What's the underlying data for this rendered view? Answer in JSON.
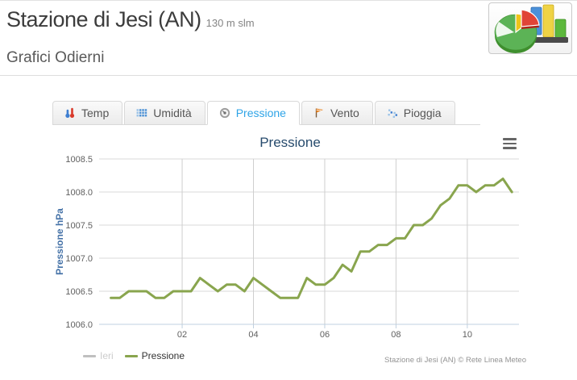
{
  "header": {
    "title": "Stazione di Jesi (AN)",
    "subtitle": "130 m slm",
    "section_title": "Grafici Odierni"
  },
  "logo": {
    "icon": "pie-and-bar-chart-logo"
  },
  "tabs": [
    {
      "id": "temp",
      "label": "Temp",
      "icon": "thermometer-icon",
      "active": false
    },
    {
      "id": "umidita",
      "label": "Umidità",
      "icon": "humidity-grid-icon",
      "active": false
    },
    {
      "id": "pressione",
      "label": "Pressione",
      "icon": "gauge-icon",
      "active": true
    },
    {
      "id": "vento",
      "label": "Vento",
      "icon": "wind-flag-icon",
      "active": false
    },
    {
      "id": "pioggia",
      "label": "Pioggia",
      "icon": "rain-drops-icon",
      "active": false
    }
  ],
  "colors": {
    "active_tab_text": "#2FA4E7",
    "series_green": "#89A54E",
    "legend_disabled_line": "#C0C0C0",
    "legend_disabled_text": "#CCCCCC",
    "legend_text": "#333333",
    "chart_title": "#274B6D",
    "y_axis_title": "#4572A7",
    "grid_line": "#D8D8D8",
    "x_grid_line": "#CFCFCF",
    "axis_line": "#C0D0E0",
    "tick_label": "#606060"
  },
  "chart": {
    "title": "Pressione",
    "menu_icon": "hamburger-menu-icon",
    "credits": "Stazione di Jesi (AN) © Rete Linea Meteo",
    "legend": [
      {
        "label": "Ieri",
        "line_color": "#C0C0C0",
        "text_color": "#CCCCCC",
        "disabled": true
      },
      {
        "label": "Pressione",
        "line_color": "#89A54E",
        "text_color": "#333333",
        "disabled": false
      }
    ]
  },
  "chart_data": {
    "type": "line",
    "title": "Pressione",
    "xlabel": "",
    "ylabel": "Pressione hPa",
    "x_unit": "hours of day",
    "xlim": [
      -0.33,
      11.45
    ],
    "ylim": [
      1006.0,
      1008.5
    ],
    "grid": true,
    "legend_position": "bottom-left",
    "yticks": [
      {
        "value": 1006.0,
        "label": "1006.0"
      },
      {
        "value": 1006.5,
        "label": "1006.5"
      },
      {
        "value": 1007.0,
        "label": "1007.0"
      },
      {
        "value": 1007.5,
        "label": "1007.5"
      },
      {
        "value": 1008.0,
        "label": "1008.0"
      },
      {
        "value": 1008.5,
        "label": "1008.5"
      }
    ],
    "xticks": [
      {
        "value": 2,
        "label": "02"
      },
      {
        "value": 4,
        "label": "04"
      },
      {
        "value": 6,
        "label": "06"
      },
      {
        "value": 8,
        "label": "08"
      },
      {
        "value": 10,
        "label": "10"
      }
    ],
    "x": [
      0,
      0.25,
      0.5,
      0.75,
      1,
      1.25,
      1.5,
      1.75,
      2,
      2.25,
      2.5,
      2.75,
      3,
      3.25,
      3.5,
      3.75,
      4,
      4.25,
      4.5,
      4.75,
      5,
      5.25,
      5.5,
      5.75,
      6,
      6.25,
      6.5,
      6.75,
      7,
      7.25,
      7.5,
      7.75,
      8,
      8.25,
      8.5,
      8.75,
      9,
      9.25,
      9.5,
      9.75,
      10,
      10.25,
      10.5,
      10.75,
      11,
      11.25
    ],
    "series": [
      {
        "name": "Ieri",
        "color": "#C0C0C0",
        "visible": false,
        "values": []
      },
      {
        "name": "Pressione",
        "color": "#89A54E",
        "visible": true,
        "values": [
          1006.4,
          1006.4,
          1006.5,
          1006.5,
          1006.5,
          1006.4,
          1006.4,
          1006.5,
          1006.5,
          1006.5,
          1006.7,
          1006.6,
          1006.5,
          1006.6,
          1006.6,
          1006.5,
          1006.7,
          1006.6,
          1006.5,
          1006.4,
          1006.4,
          1006.4,
          1006.7,
          1006.6,
          1006.6,
          1006.7,
          1006.9,
          1006.8,
          1007.1,
          1007.1,
          1007.2,
          1007.2,
          1007.3,
          1007.3,
          1007.5,
          1007.5,
          1007.6,
          1007.8,
          1007.9,
          1008.1,
          1008.1,
          1008.0,
          1008.1,
          1008.1,
          1008.2,
          1008.0
        ]
      }
    ]
  }
}
